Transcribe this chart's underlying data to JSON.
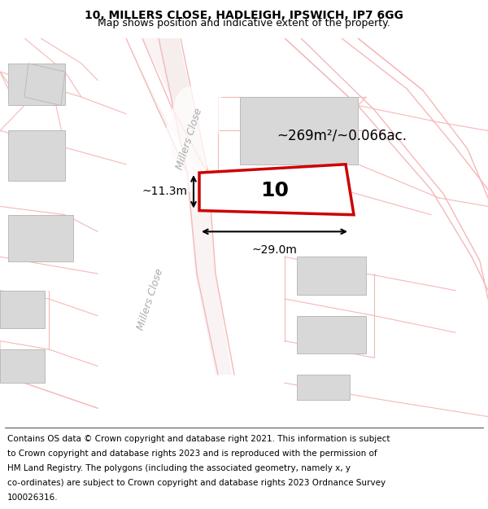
{
  "title_line1": "10, MILLERS CLOSE, HADLEIGH, IPSWICH, IP7 6GG",
  "title_line2": "Map shows position and indicative extent of the property.",
  "footer_lines": [
    "Contains OS data © Crown copyright and database right 2021. This information is subject",
    "to Crown copyright and database rights 2023 and is reproduced with the permission of",
    "HM Land Registry. The polygons (including the associated geometry, namely x, y",
    "co-ordinates) are subject to Crown copyright and database rights 2023 Ordnance Survey",
    "100026316."
  ],
  "map_bg": "#ffffff",
  "road_color": "#f5b8b8",
  "building_fill": "#d8d8d8",
  "building_edge": "#bbbbbb",
  "highlight_color": "#cc0000",
  "dim_label": "~269m²/~0.066ac.",
  "width_label": "~29.0m",
  "height_label": "~11.3m",
  "plot_number": "10",
  "road_label_upper": "Millers Close",
  "road_label_lower": "Millers Close"
}
